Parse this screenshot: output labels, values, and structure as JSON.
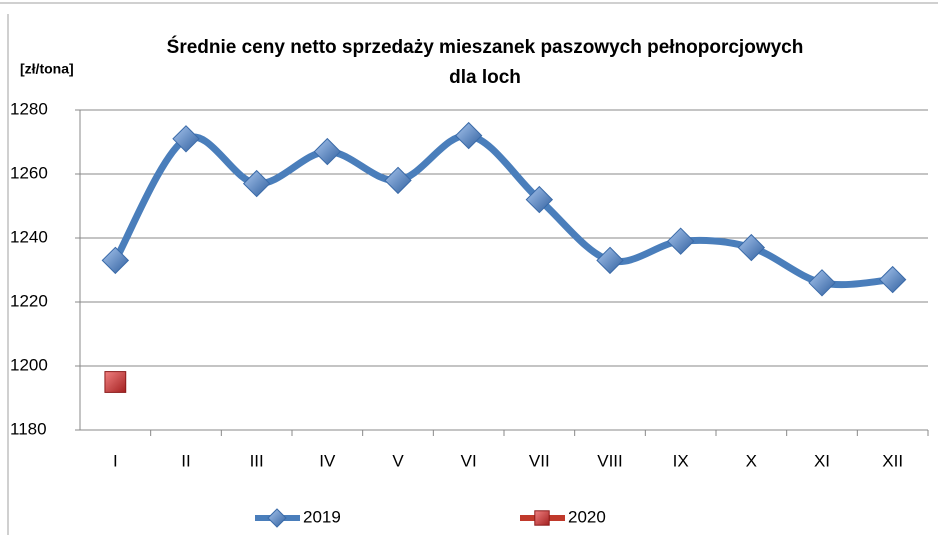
{
  "chart_data": {
    "type": "line",
    "title": [
      "Średnie ceny netto sprzedaży mieszanek paszowych pełnoporcjowych",
      "dla loch"
    ],
    "y_label": "[zł/tona]",
    "categories": [
      "I",
      "II",
      "III",
      "IV",
      "V",
      "VI",
      "VII",
      "VIII",
      "IX",
      "X",
      "XI",
      "XII"
    ],
    "series": [
      {
        "name": "2019",
        "color": "#4a7ebb",
        "values": [
          1233,
          1271,
          1257,
          1267,
          1258,
          1272,
          1252,
          1233,
          1239,
          1237,
          1226,
          1227
        ]
      },
      {
        "name": "2020",
        "color": "#c0392b",
        "values": [
          1195,
          null,
          null,
          null,
          null,
          null,
          null,
          null,
          null,
          null,
          null,
          null
        ]
      }
    ],
    "ylim": [
      1180,
      1280
    ],
    "yticks": [
      1180,
      1200,
      1220,
      1240,
      1260,
      1280
    ],
    "grid": true,
    "legend": "bottom"
  }
}
